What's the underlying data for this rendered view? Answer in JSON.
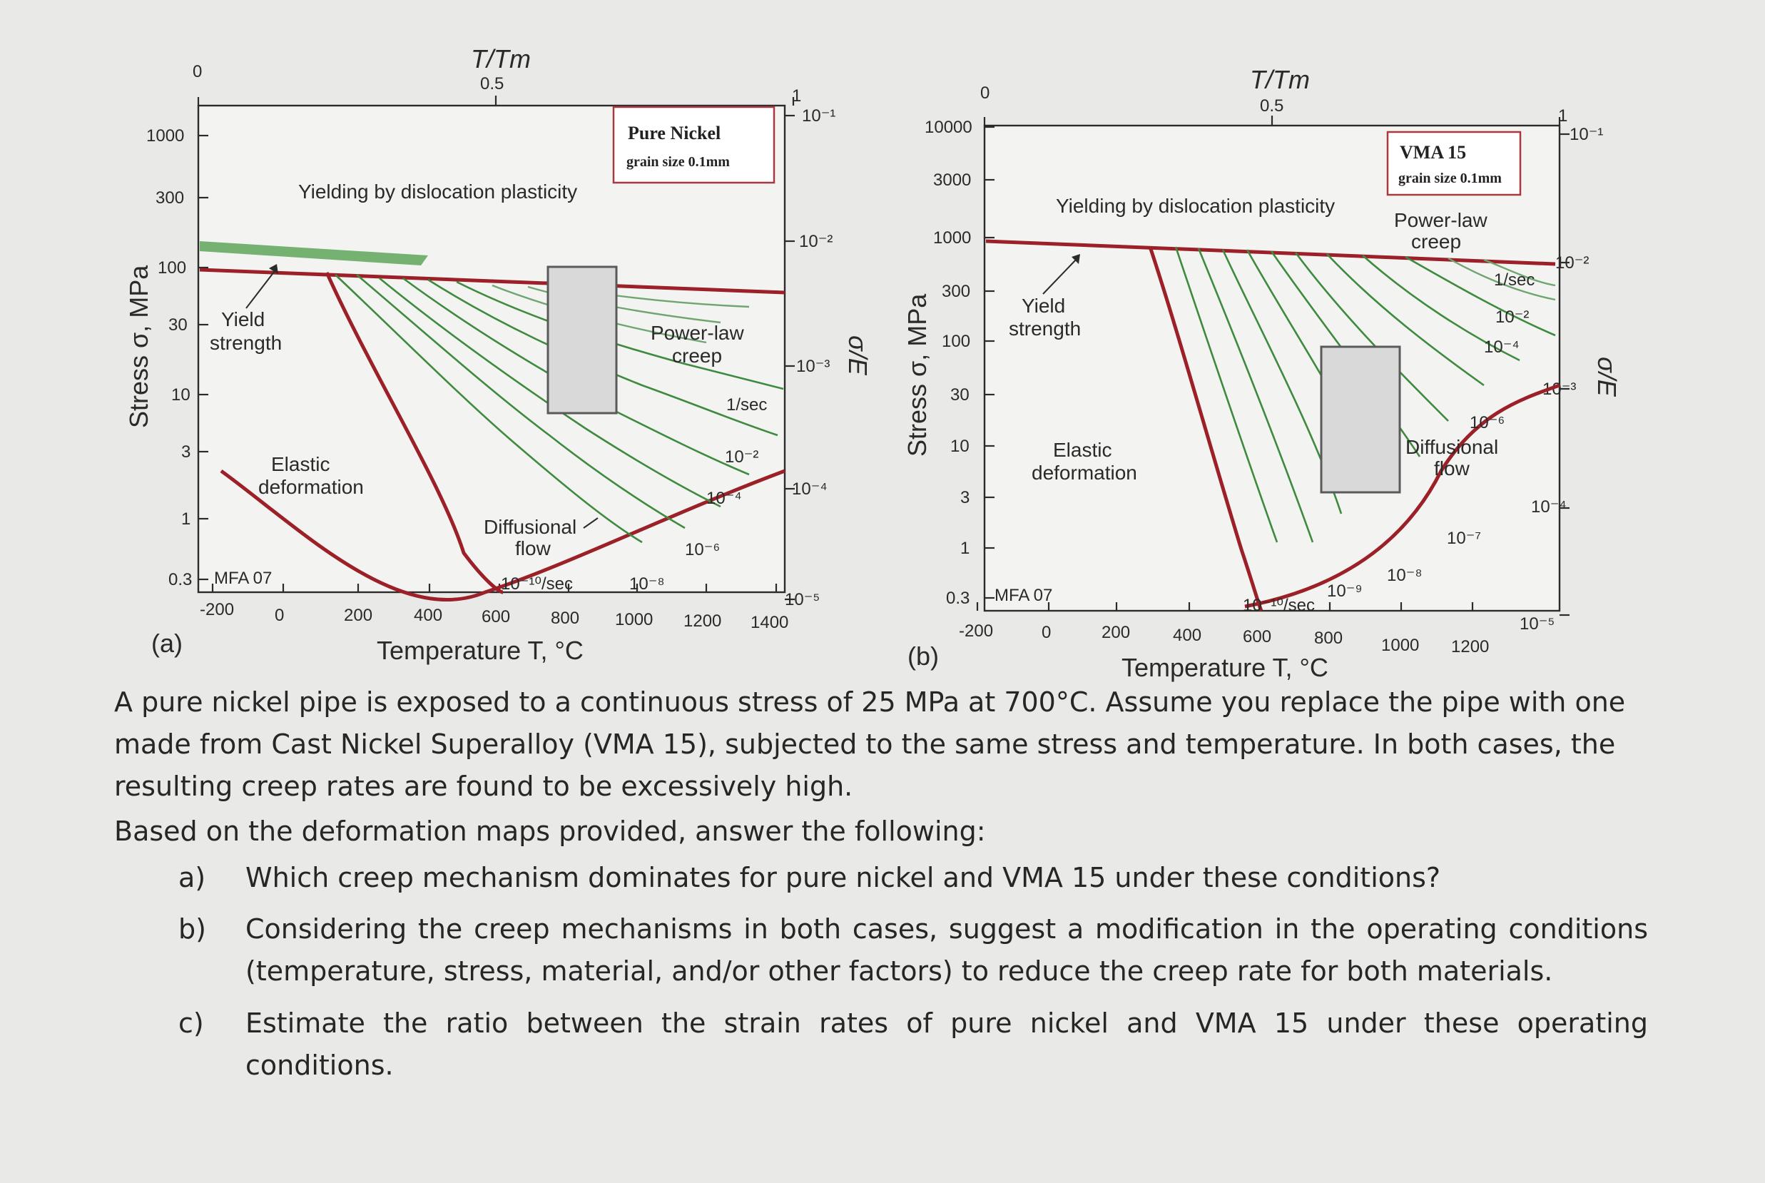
{
  "figure_a": {
    "panel_label": "(a)",
    "box_title": "Pure Nickel",
    "box_subtitle": "grain size 0.1mm",
    "top_axis_label": "T/Tm",
    "top_ticks": [
      "0",
      "0.5",
      "1"
    ],
    "y_axis_label": "Stress σ, MPa",
    "y_ticks": [
      "1000",
      "300",
      "100",
      "30",
      "10",
      "3",
      "1",
      "0.3"
    ],
    "x_axis_label": "Temperature T, °C",
    "x_ticks": [
      "-200",
      "0",
      "200",
      "400",
      "600",
      "800",
      "1000",
      "1200",
      "1400"
    ],
    "right_axis_label": "σ/E",
    "right_ticks": [
      "10⁻¹",
      "10⁻²",
      "10⁻³",
      "10⁻⁴",
      "10⁻⁵"
    ],
    "region_yielding": "Yielding by dislocation plasticity",
    "region_yield_1": "Yield",
    "region_yield_2": "strength",
    "region_powerlaw_1": "Power-law",
    "region_powerlaw_2": "creep",
    "region_elastic_1": "Elastic",
    "region_elastic_2": "deformation",
    "region_diffusional_1": "Diffusional",
    "region_diffusional_2": "flow",
    "rate_1": "1/sec",
    "rate_2": "10⁻²",
    "rate_4": "10⁻⁴",
    "rate_6": "10⁻⁶",
    "rate_8": "10⁻⁸",
    "rate_10": "10⁻¹⁰/sec",
    "source": "MFA 07"
  },
  "figure_b": {
    "panel_label": "(b)",
    "box_title": "VMA 15",
    "box_subtitle": "grain size 0.1mm",
    "top_axis_label": "T/Tm",
    "top_ticks": [
      "0",
      "0.5",
      "1"
    ],
    "y_axis_label": "Stress σ, MPa",
    "y_ticks": [
      "10000",
      "3000",
      "1000",
      "300",
      "100",
      "30",
      "10",
      "3",
      "1",
      "0.3"
    ],
    "x_axis_label": "Temperature T, °C",
    "x_ticks": [
      "-200",
      "0",
      "200",
      "400",
      "600",
      "800",
      "1000",
      "1200"
    ],
    "right_axis_label": "σ/E",
    "right_ticks": [
      "10⁻¹",
      "10⁻²",
      "10⁻³",
      "10⁻⁴",
      "10⁻⁵"
    ],
    "region_yielding": "Yielding by dislocation plasticity",
    "region_yield_1": "Yield",
    "region_yield_2": "strength",
    "region_powerlaw_1": "Power-law",
    "region_powerlaw_2": "creep",
    "region_elastic_1": "Elastic",
    "region_elastic_2": "deformation",
    "region_diffusional_1": "Diffusional",
    "region_diffusional_2": "flow",
    "rate_1": "1/sec",
    "rate_2": "10⁻²",
    "rate_4": "10⁻⁴",
    "rate_6": "10⁻⁶",
    "rate_7": "10⁻⁷",
    "rate_8": "10⁻⁸",
    "rate_9": "10⁻⁹",
    "rate_10": "10⁻¹⁰/sec",
    "source": "MFA 07"
  },
  "question": {
    "intro": "A pure nickel pipe is exposed to a continuous stress of 25 MPa at 700°C. Assume you replace the pipe with one made from Cast Nickel Superalloy (VMA 15), subjected to the same stress and temperature. In both cases, the resulting creep rates are found to be excessively high.",
    "lead": "Based on the deformation maps provided, answer the following:",
    "items": [
      {
        "marker": "a)",
        "text": "Which creep mechanism dominates for pure nickel and VMA 15 under these conditions?"
      },
      {
        "marker": "b)",
        "text": "Considering the creep mechanisms in both cases, suggest a modification in the operating conditions (temperature, stress, material, and/or other factors) to reduce the creep rate for both materials."
      },
      {
        "marker": "c)",
        "text": "Estimate the ratio between the strain rates of pure nickel and VMA 15 under these operating conditions."
      }
    ]
  }
}
